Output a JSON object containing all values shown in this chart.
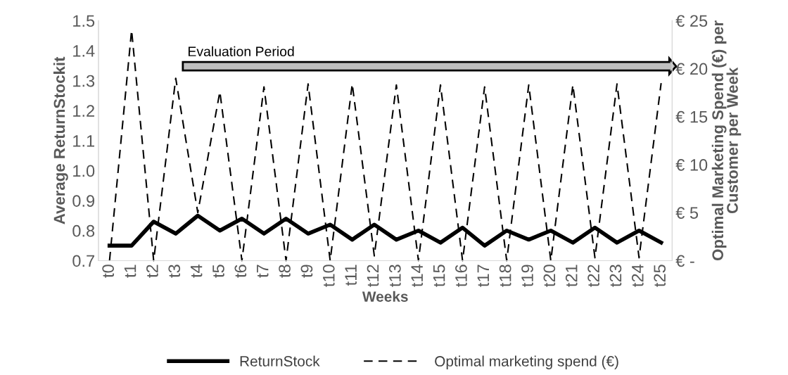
{
  "chart_data": {
    "type": "line",
    "categories": [
      "t0",
      "t1",
      "t2",
      "t3",
      "t4",
      "t5",
      "t6",
      "t7",
      "t8",
      "t9",
      "t10",
      "t11",
      "t12",
      "t13",
      "t14",
      "t15",
      "t16",
      "t17",
      "t18",
      "t19",
      "t20",
      "t21",
      "t22",
      "t23",
      "t24",
      "t25"
    ],
    "series": [
      {
        "name": "ReturnStock",
        "color": "#000000",
        "line_style": "solid",
        "values": [
          0.75,
          0.75,
          0.83,
          0.79,
          0.85,
          0.8,
          0.84,
          0.79,
          0.84,
          0.79,
          0.82,
          0.77,
          0.82,
          0.77,
          0.8,
          0.76,
          0.81,
          0.75,
          0.8,
          0.77,
          0.8,
          0.76,
          0.81,
          0.76,
          0.8,
          0.76
        ]
      },
      {
        "name": "Optimal marketing spend (€)",
        "color": "#000000",
        "line_style": "dashed",
        "axis": "y2",
        "values": [
          0,
          24,
          0,
          19,
          5,
          17.6,
          0,
          18.1,
          0,
          18.4,
          0,
          18.4,
          0.5,
          18.3,
          0,
          18.3,
          0,
          18.1,
          0,
          18.3,
          0,
          18.3,
          0.3,
          18.4,
          0.3,
          18.5
        ]
      }
    ],
    "xlabel": "Weeks",
    "ylabel": "Average ReturnStockit",
    "y2label": "Optimal Marketing Spend (€) per\nCustomer per Week",
    "ylim": [
      0.7,
      1.5
    ],
    "yticks": [
      0.7,
      0.8,
      0.9,
      {
        "value": 1,
        "label": "1.0"
      },
      1.1,
      1.2,
      1.3,
      1.4,
      1.5
    ],
    "y2lim": [
      0,
      25
    ],
    "y2ticks": [
      {
        "value": 0,
        "label": "€ -"
      },
      {
        "value": 5,
        "label": "€ 5"
      },
      {
        "value": 10,
        "label": "€ 10"
      },
      {
        "value": 15,
        "label": "€ 15"
      },
      {
        "value": 20,
        "label": "€ 20"
      },
      {
        "value": 25,
        "label": "€ 25"
      }
    ],
    "annotations": [
      "Evaluation Period"
    ],
    "grid": false,
    "legend": "bottom",
    "marker": "none"
  }
}
